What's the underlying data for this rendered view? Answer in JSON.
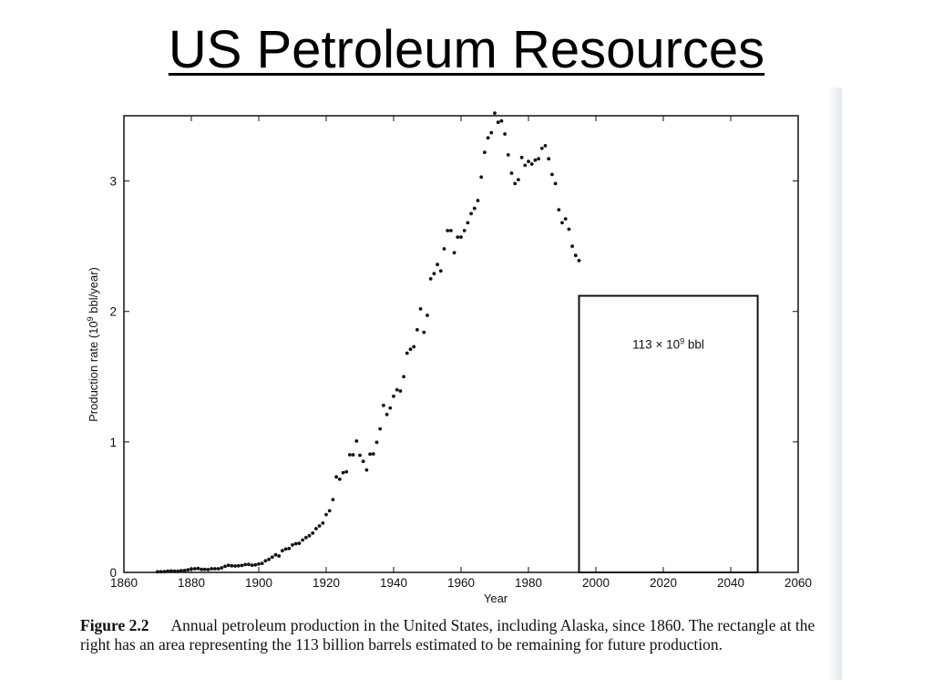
{
  "slide": {
    "title": "US Petroleum Resources"
  },
  "caption": {
    "label": "Figure 2.2",
    "text": "Annual petroleum production in the United States, including Alaska, since 1860. The rectangle at the right has an area representing the 113 billion barrels estimated to be remaining for future production."
  },
  "chart_data": {
    "type": "scatter",
    "xlabel": "Year",
    "ylabel_main": "Production rate (10",
    "ylabel_sup": "9",
    "ylabel_tail": " bbl/year)",
    "xlim": [
      1860,
      2060
    ],
    "ylim": [
      0,
      3.5
    ],
    "xticks": [
      1860,
      1880,
      1900,
      1920,
      1940,
      1960,
      1980,
      2000,
      2020,
      2040,
      2060
    ],
    "yticks": [
      0,
      1,
      2,
      3
    ],
    "grid": false,
    "series": [
      {
        "x": [
          1870,
          1871,
          1872,
          1873,
          1874,
          1875,
          1876,
          1877,
          1878,
          1879,
          1880,
          1881,
          1882,
          1883,
          1884,
          1885,
          1886,
          1887,
          1888,
          1889,
          1890,
          1891,
          1892,
          1893,
          1894,
          1895,
          1896,
          1897,
          1898,
          1899,
          1900,
          1901,
          1902,
          1903,
          1904,
          1905,
          1906,
          1907,
          1908,
          1909,
          1910,
          1911,
          1912,
          1913,
          1914,
          1915,
          1916,
          1917,
          1918,
          1919,
          1920,
          1921,
          1922,
          1923,
          1924,
          1925,
          1926,
          1927,
          1928,
          1929,
          1930,
          1931,
          1932,
          1933,
          1934,
          1935,
          1936,
          1937,
          1938,
          1939,
          1940,
          1941,
          1942,
          1943,
          1944,
          1945,
          1946,
          1947,
          1948,
          1949,
          1950,
          1951,
          1952,
          1953,
          1954,
          1955,
          1956,
          1957,
          1958,
          1959,
          1960,
          1961,
          1962,
          1963,
          1964,
          1965,
          1966,
          1967,
          1968,
          1969,
          1970,
          1971,
          1972,
          1973,
          1974,
          1975,
          1976,
          1977,
          1978,
          1979,
          1980,
          1981,
          1982,
          1983,
          1984,
          1985,
          1986,
          1987,
          1988,
          1989,
          1990,
          1991,
          1992,
          1993,
          1994,
          1995
        ],
        "y": [
          0.005,
          0.005,
          0.006,
          0.01,
          0.011,
          0.009,
          0.009,
          0.013,
          0.015,
          0.02,
          0.026,
          0.028,
          0.03,
          0.023,
          0.024,
          0.022,
          0.028,
          0.028,
          0.028,
          0.035,
          0.046,
          0.054,
          0.05,
          0.049,
          0.05,
          0.053,
          0.06,
          0.061,
          0.055,
          0.057,
          0.064,
          0.069,
          0.089,
          0.1,
          0.117,
          0.135,
          0.126,
          0.166,
          0.179,
          0.183,
          0.21,
          0.22,
          0.223,
          0.248,
          0.266,
          0.281,
          0.301,
          0.335,
          0.356,
          0.378,
          0.443,
          0.472,
          0.558,
          0.732,
          0.714,
          0.764,
          0.771,
          0.901,
          0.901,
          1.007,
          0.898,
          0.851,
          0.785,
          0.906,
          0.908,
          0.997,
          1.1,
          1.28,
          1.21,
          1.26,
          1.35,
          1.4,
          1.39,
          1.5,
          1.68,
          1.71,
          1.73,
          1.86,
          2.02,
          1.84,
          1.97,
          2.25,
          2.29,
          2.36,
          2.31,
          2.48,
          2.62,
          2.62,
          2.45,
          2.57,
          2.57,
          2.62,
          2.68,
          2.75,
          2.79,
          2.85,
          3.03,
          3.22,
          3.33,
          3.37,
          3.52,
          3.45,
          3.46,
          3.36,
          3.2,
          3.06,
          2.98,
          3.01,
          3.18,
          3.12,
          3.15,
          3.13,
          3.16,
          3.17,
          3.25,
          3.27,
          3.17,
          3.05,
          2.98,
          2.78,
          2.68,
          2.71,
          2.63,
          2.5,
          2.43,
          2.39
        ]
      }
    ],
    "remaining_box": {
      "x_start": 1995,
      "x_end": 2048,
      "height": 2.12,
      "label_main": "113 × 10",
      "label_sup": "9",
      "label_tail": " bbl"
    }
  }
}
